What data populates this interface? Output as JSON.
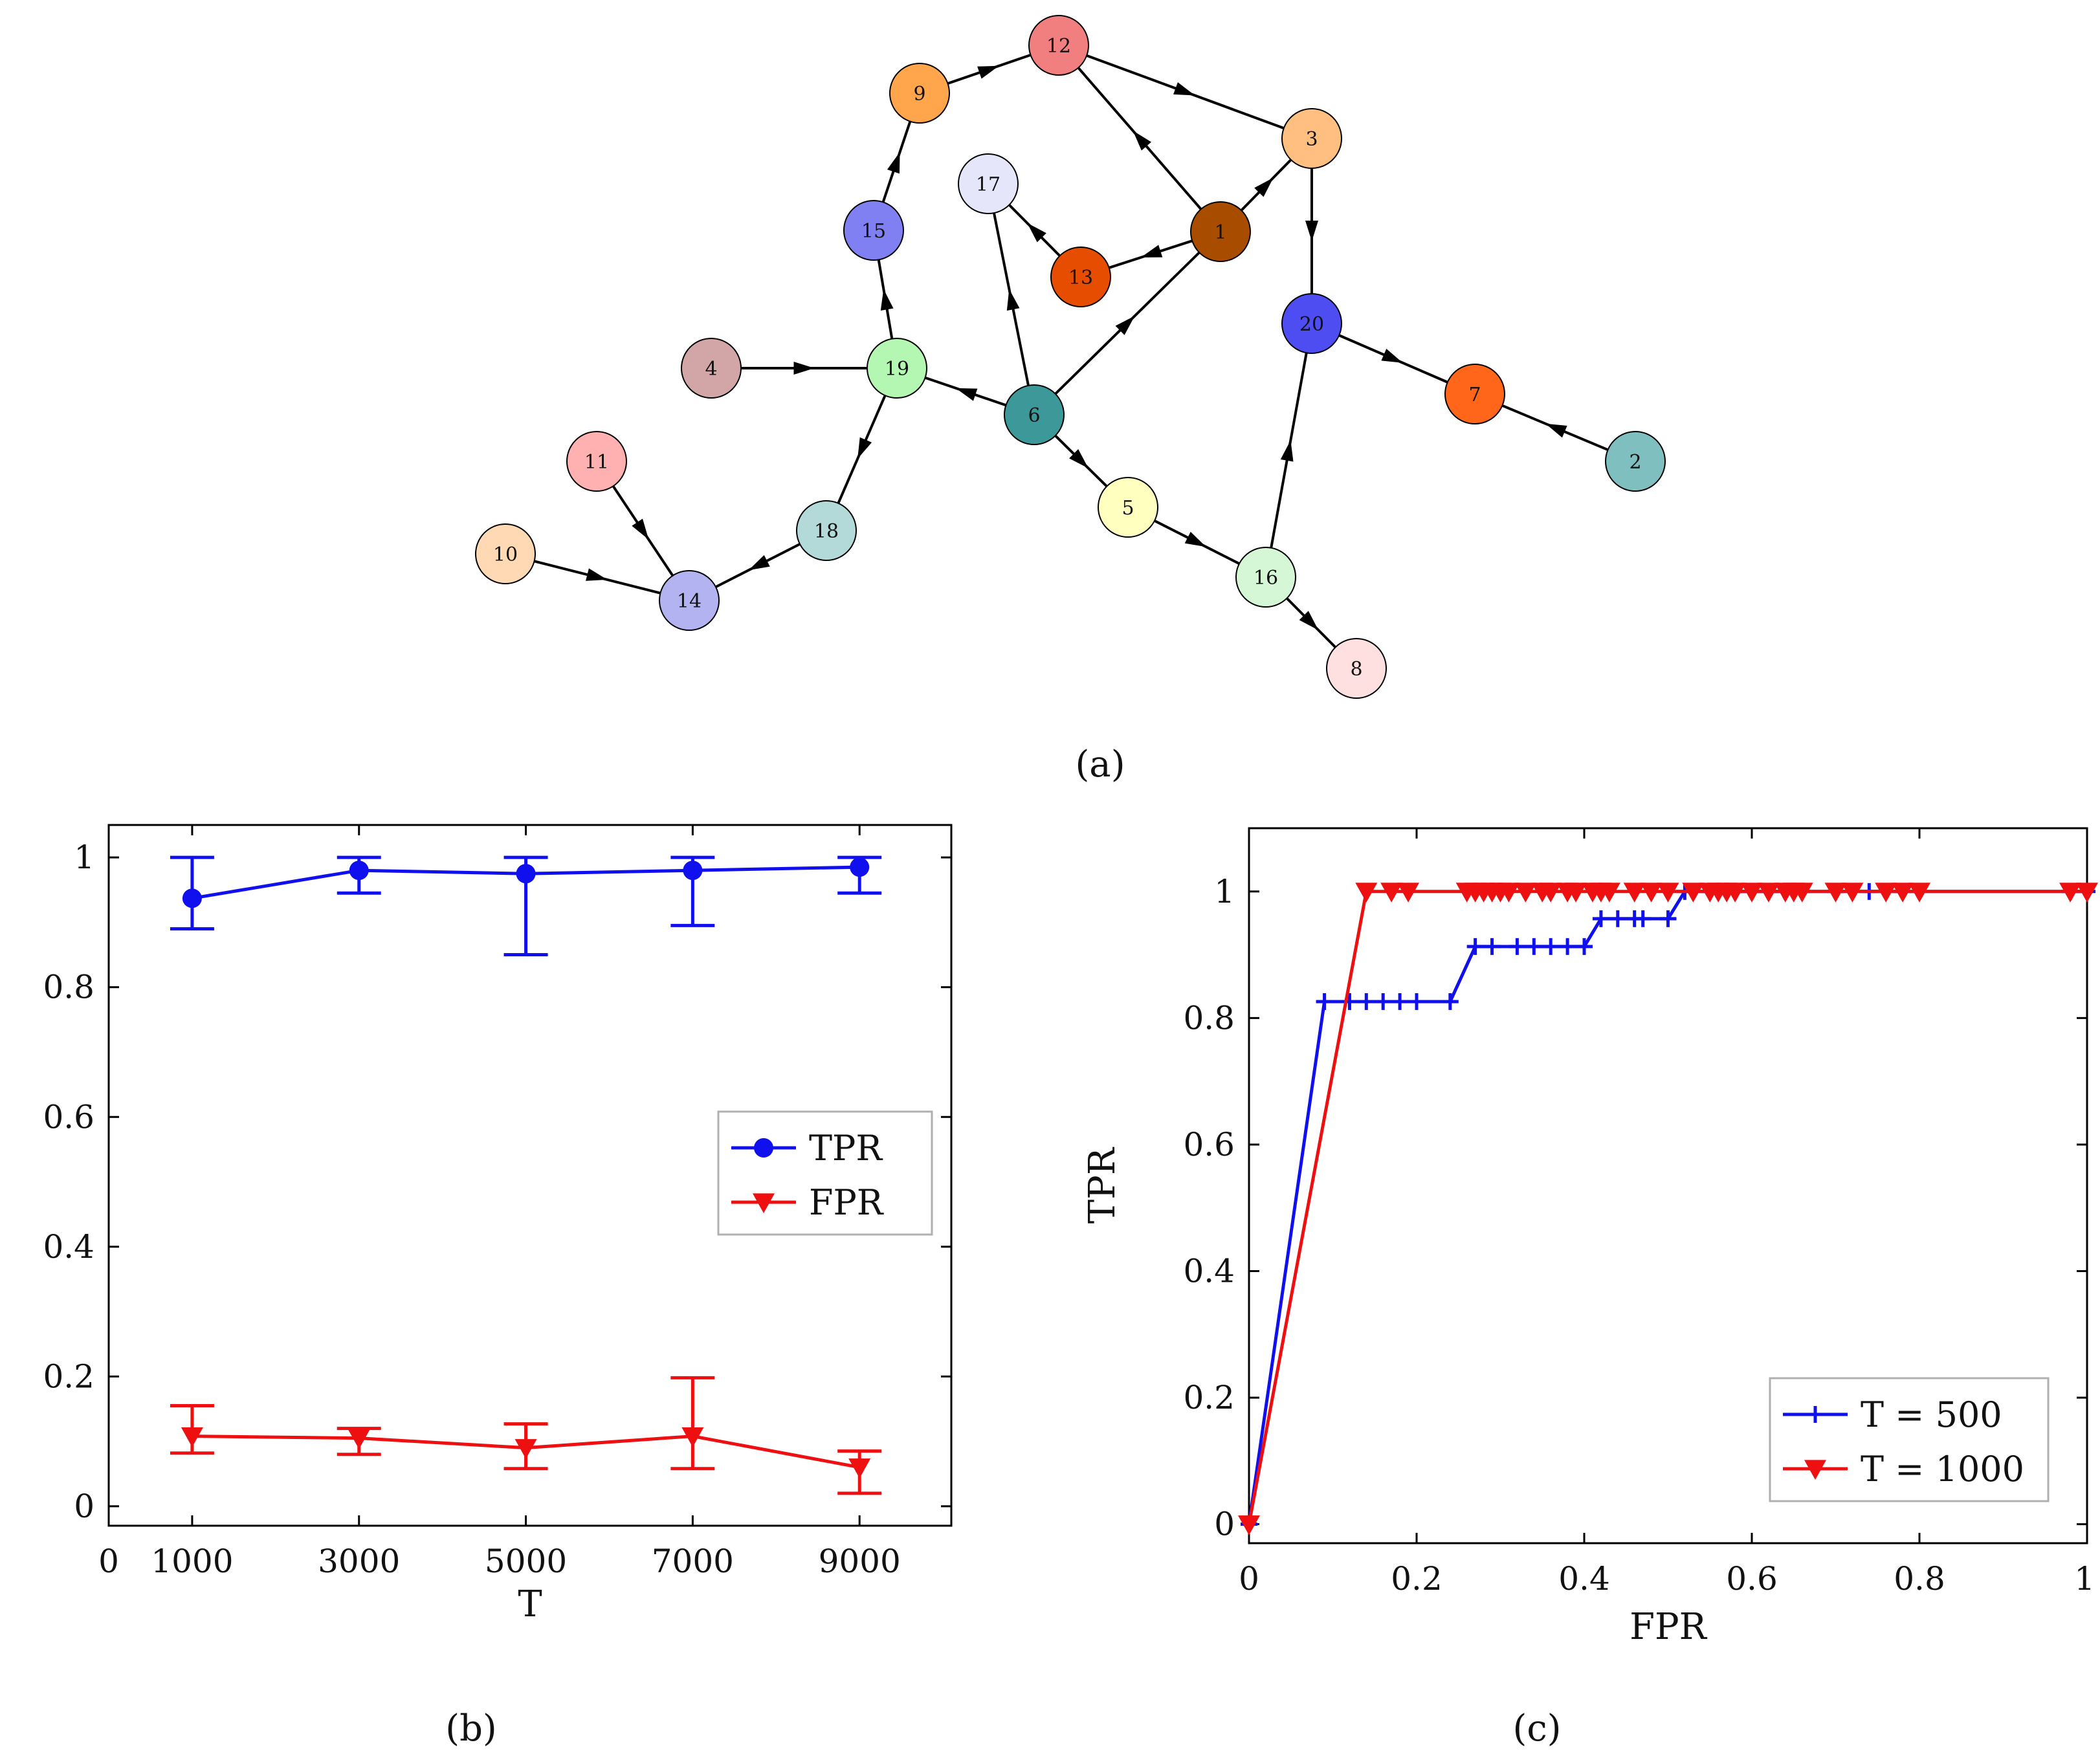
{
  "panel_labels": {
    "a": "(a)",
    "b": "(b)",
    "c": "(c)"
  },
  "colors": {
    "tpr": "#1010ee",
    "fpr": "#ee1010",
    "edge": "#000000"
  },
  "graph": {
    "nodes": [
      {
        "id": "1",
        "color": "#a84d00"
      },
      {
        "id": "2",
        "color": "#7fbfbf"
      },
      {
        "id": "3",
        "color": "#ffbf80"
      },
      {
        "id": "4",
        "color": "#d2a6a6"
      },
      {
        "id": "5",
        "color": "#ffffbf"
      },
      {
        "id": "6",
        "color": "#3d9999"
      },
      {
        "id": "7",
        "color": "#ff6619"
      },
      {
        "id": "8",
        "color": "#ffe0e0"
      },
      {
        "id": "9",
        "color": "#ffa64d"
      },
      {
        "id": "10",
        "color": "#ffd9b3"
      },
      {
        "id": "11",
        "color": "#ffb0b0"
      },
      {
        "id": "12",
        "color": "#f27f7f"
      },
      {
        "id": "13",
        "color": "#e64d00"
      },
      {
        "id": "14",
        "color": "#b3b3f2"
      },
      {
        "id": "15",
        "color": "#8080f2"
      },
      {
        "id": "16",
        "color": "#d6f7d6"
      },
      {
        "id": "17",
        "color": "#e6e6fa"
      },
      {
        "id": "18",
        "color": "#b3d9d9"
      },
      {
        "id": "19",
        "color": "#b3f7b3"
      },
      {
        "id": "20",
        "color": "#4d4df2"
      }
    ],
    "edges": [
      [
        "9",
        "12"
      ],
      [
        "12",
        "3"
      ],
      [
        "1",
        "12"
      ],
      [
        "1",
        "3"
      ],
      [
        "3",
        "20"
      ],
      [
        "1",
        "13"
      ],
      [
        "13",
        "17"
      ],
      [
        "6",
        "17"
      ],
      [
        "6",
        "1"
      ],
      [
        "15",
        "9"
      ],
      [
        "19",
        "15"
      ],
      [
        "4",
        "19"
      ],
      [
        "6",
        "19"
      ],
      [
        "19",
        "18"
      ],
      [
        "18",
        "14"
      ],
      [
        "11",
        "14"
      ],
      [
        "10",
        "14"
      ],
      [
        "6",
        "5"
      ],
      [
        "5",
        "16"
      ],
      [
        "16",
        "20"
      ],
      [
        "16",
        "8"
      ],
      [
        "20",
        "7"
      ],
      [
        "2",
        "7"
      ]
    ]
  },
  "chart_data": [
    {
      "panel": "b",
      "type": "line",
      "title": "",
      "xlabel": "T",
      "ylabel": "",
      "xlim": [
        0,
        10100
      ],
      "ylim": [
        -0.03,
        1.05
      ],
      "xticks": [
        0,
        1000,
        3000,
        5000,
        7000,
        9000
      ],
      "yticks": [
        0,
        0.2,
        0.4,
        0.6,
        0.8,
        1
      ],
      "x": [
        1000,
        3000,
        5000,
        7000,
        9000
      ],
      "series": [
        {
          "name": "TPR",
          "marker": "circle",
          "color": "#1010ee",
          "values": [
            0.937,
            0.98,
            0.975,
            0.98,
            0.985
          ],
          "err_low": [
            0.89,
            0.945,
            0.85,
            0.895,
            0.945
          ],
          "err_high": [
            1.0,
            1.0,
            1.0,
            1.0,
            1.0
          ]
        },
        {
          "name": "FPR",
          "marker": "triangle-down",
          "color": "#ee1010",
          "values": [
            0.108,
            0.105,
            0.09,
            0.108,
            0.06
          ],
          "err_low": [
            0.082,
            0.08,
            0.058,
            0.058,
            0.02
          ],
          "err_high": [
            0.155,
            0.12,
            0.127,
            0.198,
            0.085
          ]
        }
      ],
      "legend_position": "center-right"
    },
    {
      "panel": "c",
      "type": "line",
      "title": "",
      "xlabel": "FPR",
      "ylabel": "TPR",
      "xlim": [
        0,
        1
      ],
      "ylim": [
        -0.03,
        1.1
      ],
      "xticks": [
        0,
        0.2,
        0.4,
        0.6,
        0.8,
        1
      ],
      "yticks": [
        0,
        0.2,
        0.4,
        0.6,
        0.8,
        1
      ],
      "series": [
        {
          "name": "T = 500",
          "marker": "plus",
          "color": "#1010ee",
          "x": [
            0,
            0.09,
            0.12,
            0.14,
            0.16,
            0.18,
            0.2,
            0.24,
            0.27,
            0.29,
            0.32,
            0.34,
            0.36,
            0.38,
            0.4,
            0.42,
            0.44,
            0.46,
            0.47,
            0.5,
            0.52,
            0.55,
            0.58,
            0.6,
            0.62,
            0.64,
            0.66,
            0.7,
            0.74,
            0.78,
            0.98,
            1.0
          ],
          "y": [
            0,
            0.826,
            0.826,
            0.826,
            0.826,
            0.826,
            0.826,
            0.826,
            0.913,
            0.913,
            0.913,
            0.913,
            0.913,
            0.913,
            0.913,
            0.957,
            0.957,
            0.957,
            0.957,
            0.957,
            1,
            1,
            1,
            1,
            1,
            1,
            1,
            1,
            1,
            1,
            1,
            1
          ]
        },
        {
          "name": "T = 1000",
          "marker": "triangle-down",
          "color": "#ee1010",
          "x": [
            0,
            0.14,
            0.17,
            0.19,
            0.26,
            0.27,
            0.28,
            0.29,
            0.3,
            0.31,
            0.33,
            0.35,
            0.36,
            0.38,
            0.39,
            0.41,
            0.42,
            0.43,
            0.46,
            0.48,
            0.5,
            0.53,
            0.55,
            0.56,
            0.57,
            0.58,
            0.6,
            0.62,
            0.64,
            0.65,
            0.66,
            0.7,
            0.72,
            0.76,
            0.78,
            0.8,
            0.98,
            1.0
          ],
          "y": [
            0,
            1,
            1,
            1,
            1,
            1,
            1,
            1,
            1,
            1,
            1,
            1,
            1,
            1,
            1,
            1,
            1,
            1,
            1,
            1,
            1,
            1,
            1,
            1,
            1,
            1,
            1,
            1,
            1,
            1,
            1,
            1,
            1,
            1,
            1,
            1,
            1,
            1
          ]
        }
      ],
      "legend_position": "bottom-right"
    }
  ]
}
